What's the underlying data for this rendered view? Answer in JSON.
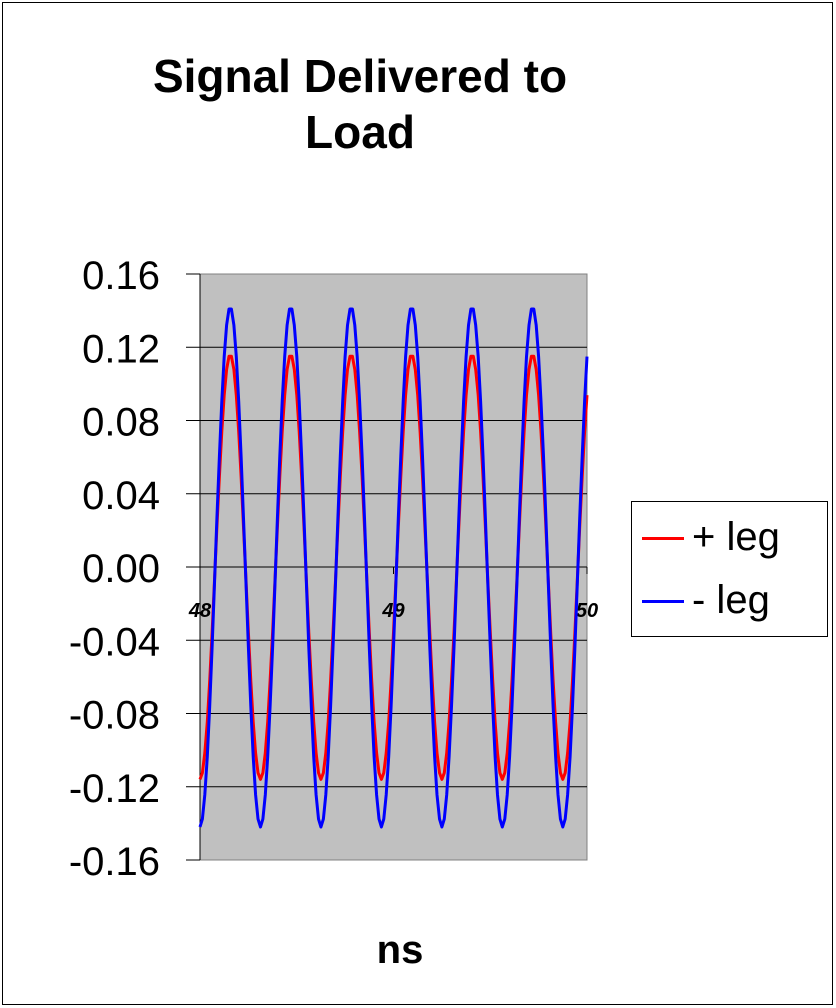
{
  "chart_data": {
    "type": "line",
    "title": "Signal Delivered to Load",
    "xlabel": "ns",
    "ylabel": "",
    "xlim": [
      48,
      50
    ],
    "ylim": [
      -0.16,
      0.16
    ],
    "y_ticks": [
      "0.16",
      "0.12",
      "0.08",
      "0.04",
      "0.00",
      "-0.04",
      "-0.08",
      "-0.12",
      "-0.16"
    ],
    "x_ticks": [
      "48",
      "49",
      "50"
    ],
    "grid": "horizontal",
    "plot_background": "#c0c0c0",
    "legend_position": "right",
    "waveform": {
      "periods_in_range": 6.4,
      "start_phase": "minimum"
    },
    "series": [
      {
        "name": "+ leg",
        "color": "#ff0000",
        "amplitude": 0.116
      },
      {
        "name": "- leg",
        "color": "#0000ff",
        "amplitude": 0.142
      }
    ]
  }
}
